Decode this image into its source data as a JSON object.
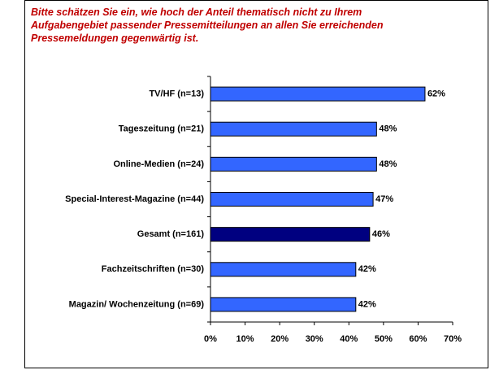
{
  "chart_data": {
    "type": "barh",
    "title": [
      "Bitte schätzen Sie ein, wie hoch der Anteil thematisch nicht zu Ihrem",
      "Aufgabengebiet passender Pressemitteilungen an allen Sie erreichenden",
      "Pressemeldungen gegenwärtig ist."
    ],
    "categories": [
      "TV/HF (n=13)",
      "Tageszeitung (n=21)",
      "Online-Medien (n=24)",
      "Special-Interest-Magazine (n=44)",
      "Gesamt (n=161)",
      "Fachzeitschriften (n=30)",
      "Magazin/ Wochenzeitung (n=69)"
    ],
    "values": [
      62,
      48,
      48,
      47,
      46,
      42,
      42
    ],
    "value_labels": [
      "62%",
      "48%",
      "48%",
      "47%",
      "46%",
      "42%",
      "42%"
    ],
    "colors": [
      "#3366ff",
      "#3366ff",
      "#3366ff",
      "#3366ff",
      "#000080",
      "#3366ff",
      "#3366ff"
    ],
    "xlim": [
      0,
      70
    ],
    "xticks": [
      {
        "value": 0,
        "label": "0%"
      },
      {
        "value": 10,
        "label": "10%"
      },
      {
        "value": 20,
        "label": "20%"
      },
      {
        "value": 30,
        "label": "30%"
      },
      {
        "value": 40,
        "label": "40%"
      },
      {
        "value": 50,
        "label": "50%"
      },
      {
        "value": 60,
        "label": "60%"
      },
      {
        "value": 70,
        "label": "70%"
      }
    ]
  }
}
